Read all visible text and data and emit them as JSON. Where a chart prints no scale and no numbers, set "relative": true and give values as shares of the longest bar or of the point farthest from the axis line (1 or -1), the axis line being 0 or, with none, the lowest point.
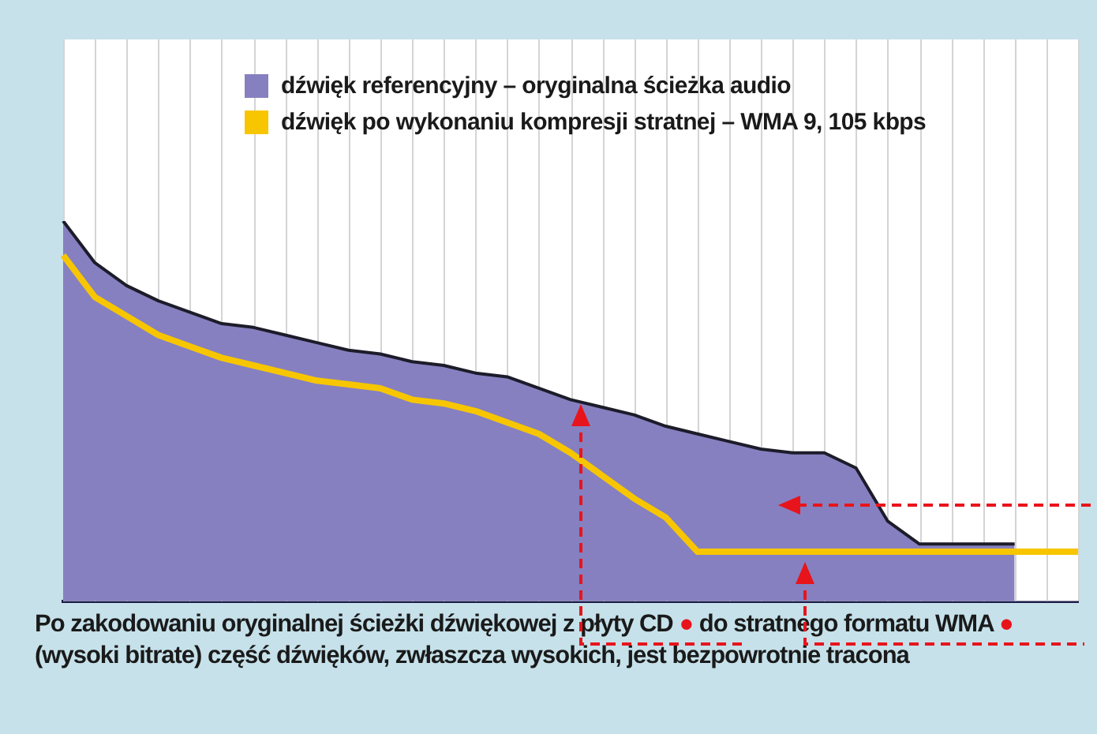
{
  "chart_data": {
    "type": "area",
    "relative": true,
    "grid": "x",
    "legend": "top",
    "categories": [
      null,
      null,
      null,
      null,
      null,
      null,
      null,
      null,
      null,
      null,
      null,
      null,
      null,
      null,
      null,
      null,
      null,
      null,
      null,
      null,
      null,
      null,
      null,
      null,
      null,
      null,
      null,
      null,
      null,
      null,
      null,
      null,
      null
    ],
    "series": [
      {
        "name": "dźwięk referencyjny – oryginalna ścieżka audio",
        "type": "area",
        "color": "#8680c0",
        "values": [
          1.0,
          0.89,
          0.83,
          0.79,
          0.76,
          0.73,
          0.72,
          0.7,
          0.68,
          0.66,
          0.65,
          0.63,
          0.62,
          0.6,
          0.59,
          0.56,
          0.53,
          0.51,
          0.49,
          0.46,
          0.44,
          0.42,
          0.4,
          0.39,
          0.39,
          0.35,
          0.21,
          0.15,
          0.15,
          0.15,
          0.15,
          null,
          null
        ]
      },
      {
        "name": "dźwięk po wykonaniu kompresji stratnej – WMA 9, 105 kbps",
        "type": "line",
        "color": "#f7c600",
        "values": [
          0.91,
          0.8,
          0.75,
          0.7,
          0.67,
          0.64,
          0.62,
          0.6,
          0.58,
          0.57,
          0.56,
          0.53,
          0.52,
          0.5,
          0.47,
          0.44,
          0.39,
          0.33,
          0.27,
          0.22,
          0.13,
          0.13,
          0.13,
          0.13,
          0.13,
          0.13,
          0.13,
          0.13,
          0.13,
          0.13,
          0.13,
          0.13,
          0.13
        ]
      }
    ],
    "annotations": [
      "Po zakodowaniu oryginalnej ścieżki dźwiękowej z płyty CD ● do stratnego formatu WMA ● (wysoki bitrate) część dźwięków, zwłaszcza wysokich, jest bezpowrotnie tracona"
    ]
  }
}
